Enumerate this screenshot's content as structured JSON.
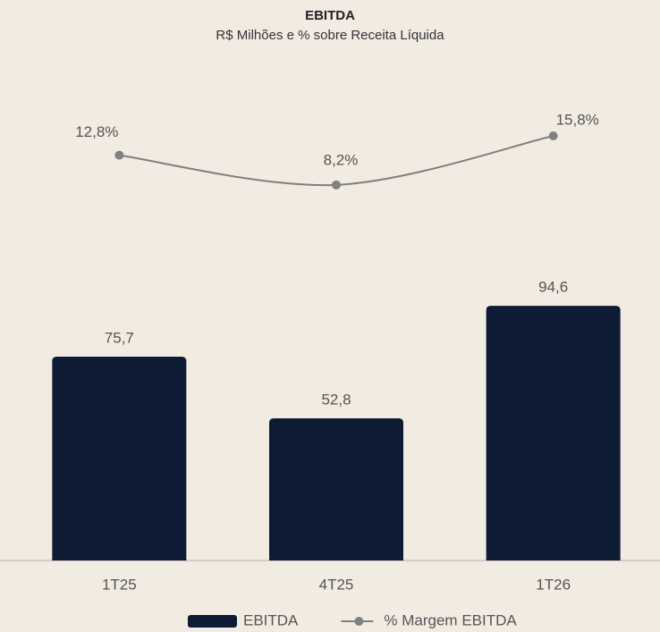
{
  "chart_data": {
    "type": "bar",
    "title": "EBITDA",
    "subtitle": "R$ Milhões e % sobre Receita Líquida",
    "categories": [
      "1T25",
      "4T25",
      "1T26"
    ],
    "series": [
      {
        "name": "EBITDA",
        "type": "bar",
        "color": "#0d1b35",
        "values": [
          75.7,
          52.8,
          94.6
        ],
        "value_labels": [
          "75,7",
          "52,8",
          "94,6"
        ]
      },
      {
        "name": "% Margem EBITDA",
        "type": "line",
        "axis": "y2",
        "color": "#808080",
        "values": [
          12.8,
          8.2,
          15.8
        ],
        "value_labels": [
          "12,8%",
          "8,2%",
          "15,8%"
        ]
      }
    ],
    "ylim": [
      0,
      175
    ],
    "y2lim": [
      -50,
      23
    ],
    "legend": "bottom"
  }
}
